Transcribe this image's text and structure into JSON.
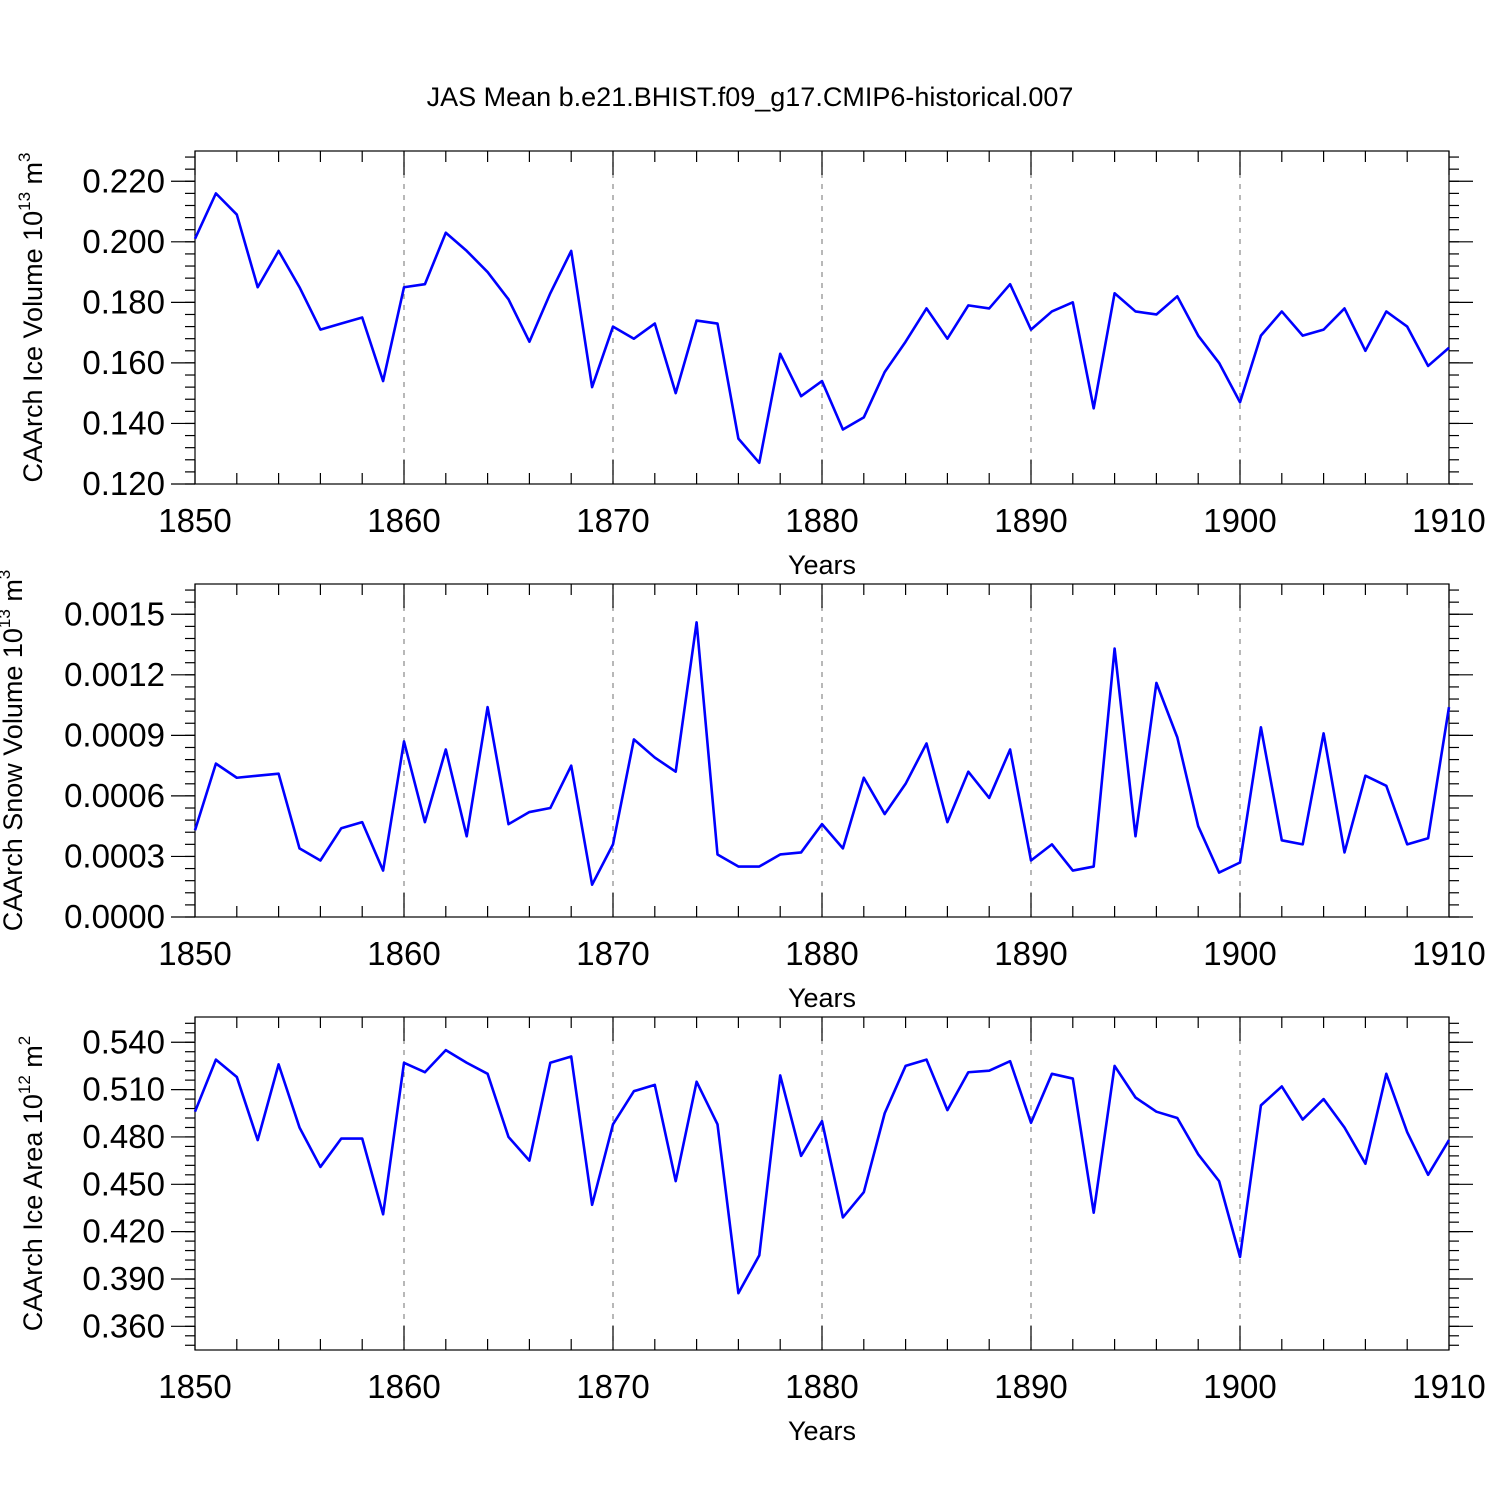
{
  "figure": {
    "title": "JAS Mean b.e21.BHIST.f09_g17.CMIP6-historical.007"
  },
  "colors": {
    "series_line": "#0000ff",
    "grid": "#888888"
  },
  "chart_data": [
    {
      "type": "line",
      "title": "",
      "xlabel": "Years",
      "ylabel": "CAArch Ice Volume 10",
      "ylabel_exp": "13",
      "ylabel_unit": " m",
      "ylabel_unit_exp": "3",
      "xlim": [
        1850,
        1910
      ],
      "ylim": [
        0.12,
        0.23
      ],
      "xticks": [
        1850,
        1860,
        1870,
        1880,
        1890,
        1900,
        1910
      ],
      "xtick_labels": [
        "1850",
        "1860",
        "1870",
        "1880",
        "1890",
        "1900",
        "1910"
      ],
      "yticks": [
        0.12,
        0.14,
        0.16,
        0.18,
        0.2,
        0.22
      ],
      "ytick_labels": [
        "0.120",
        "0.140",
        "0.160",
        "0.180",
        "0.200",
        "0.220"
      ],
      "y_minor_step": 0.004,
      "grid_x": true,
      "x": [
        1850,
        1851,
        1852,
        1853,
        1854,
        1855,
        1856,
        1857,
        1858,
        1859,
        1860,
        1861,
        1862,
        1863,
        1864,
        1865,
        1866,
        1867,
        1868,
        1869,
        1870,
        1871,
        1872,
        1873,
        1874,
        1875,
        1876,
        1877,
        1878,
        1879,
        1880,
        1881,
        1882,
        1883,
        1884,
        1885,
        1886,
        1887,
        1888,
        1889,
        1890,
        1891,
        1892,
        1893,
        1894,
        1895,
        1896,
        1897,
        1898,
        1899,
        1900,
        1901,
        1902,
        1903,
        1904,
        1905,
        1906,
        1907,
        1908,
        1909,
        1910
      ],
      "series": [
        {
          "values": [
            0.201,
            0.216,
            0.209,
            0.185,
            0.197,
            0.185,
            0.171,
            0.173,
            0.175,
            0.154,
            0.185,
            0.186,
            0.203,
            0.197,
            0.19,
            0.181,
            0.167,
            0.183,
            0.197,
            0.152,
            0.172,
            0.168,
            0.173,
            0.15,
            0.174,
            0.173,
            0.135,
            0.127,
            0.163,
            0.149,
            0.154,
            0.138,
            0.142,
            0.157,
            0.167,
            0.178,
            0.168,
            0.179,
            0.178,
            0.186,
            0.171,
            0.177,
            0.18,
            0.145,
            0.183,
            0.177,
            0.176,
            0.182,
            0.169,
            0.16,
            0.147,
            0.169,
            0.177,
            0.169,
            0.171,
            0.178,
            0.164,
            0.177,
            0.172,
            0.159,
            0.165
          ]
        }
      ]
    },
    {
      "type": "line",
      "title": "",
      "xlabel": "Years",
      "ylabel": "CAArch Snow Volume 10",
      "ylabel_exp": "13",
      "ylabel_unit": " m",
      "ylabel_unit_exp": "3",
      "xlim": [
        1850,
        1910
      ],
      "ylim": [
        0.0,
        0.00165
      ],
      "xticks": [
        1850,
        1860,
        1870,
        1880,
        1890,
        1900,
        1910
      ],
      "xtick_labels": [
        "1850",
        "1860",
        "1870",
        "1880",
        "1890",
        "1900",
        "1910"
      ],
      "yticks": [
        0.0,
        0.0003,
        0.0006,
        0.0009,
        0.0012,
        0.0015
      ],
      "ytick_labels": [
        "0.0000",
        "0.0003",
        "0.0006",
        "0.0009",
        "0.0012",
        "0.0015"
      ],
      "y_minor_step": 6e-05,
      "grid_x": true,
      "x": [
        1850,
        1851,
        1852,
        1853,
        1854,
        1855,
        1856,
        1857,
        1858,
        1859,
        1860,
        1861,
        1862,
        1863,
        1864,
        1865,
        1866,
        1867,
        1868,
        1869,
        1870,
        1871,
        1872,
        1873,
        1874,
        1875,
        1876,
        1877,
        1878,
        1879,
        1880,
        1881,
        1882,
        1883,
        1884,
        1885,
        1886,
        1887,
        1888,
        1889,
        1890,
        1891,
        1892,
        1893,
        1894,
        1895,
        1896,
        1897,
        1898,
        1899,
        1900,
        1901,
        1902,
        1903,
        1904,
        1905,
        1906,
        1907,
        1908,
        1909,
        1910
      ],
      "series": [
        {
          "values": [
            0.00043,
            0.00076,
            0.00069,
            0.0007,
            0.00071,
            0.00034,
            0.00028,
            0.00044,
            0.00047,
            0.00023,
            0.00087,
            0.00047,
            0.00083,
            0.0004,
            0.00104,
            0.00046,
            0.00052,
            0.00054,
            0.00075,
            0.00016,
            0.00036,
            0.00088,
            0.00079,
            0.00072,
            0.00146,
            0.00031,
            0.00025,
            0.00025,
            0.00031,
            0.00032,
            0.00046,
            0.00034,
            0.00069,
            0.00051,
            0.00066,
            0.00086,
            0.00047,
            0.00072,
            0.00059,
            0.00083,
            0.00028,
            0.00036,
            0.00023,
            0.00025,
            0.00133,
            0.0004,
            0.00116,
            0.00089,
            0.00045,
            0.00022,
            0.00027,
            0.00094,
            0.00038,
            0.00036,
            0.00091,
            0.00032,
            0.0007,
            0.00065,
            0.00036,
            0.00039,
            0.00104
          ]
        }
      ]
    },
    {
      "type": "line",
      "title": "",
      "xlabel": "Years",
      "ylabel": "CAArch Ice Area 10",
      "ylabel_exp": "12",
      "ylabel_unit": " m",
      "ylabel_unit_exp": "2",
      "xlim": [
        1850,
        1910
      ],
      "ylim": [
        0.345,
        0.556
      ],
      "xticks": [
        1850,
        1860,
        1870,
        1880,
        1890,
        1900,
        1910
      ],
      "xtick_labels": [
        "1850",
        "1860",
        "1870",
        "1880",
        "1890",
        "1900",
        "1910"
      ],
      "yticks": [
        0.36,
        0.39,
        0.42,
        0.45,
        0.48,
        0.51,
        0.54
      ],
      "ytick_labels": [
        "0.360",
        "0.390",
        "0.420",
        "0.450",
        "0.480",
        "0.510",
        "0.540"
      ],
      "y_minor_step": 0.006,
      "grid_x": true,
      "x": [
        1850,
        1851,
        1852,
        1853,
        1854,
        1855,
        1856,
        1857,
        1858,
        1859,
        1860,
        1861,
        1862,
        1863,
        1864,
        1865,
        1866,
        1867,
        1868,
        1869,
        1870,
        1871,
        1872,
        1873,
        1874,
        1875,
        1876,
        1877,
        1878,
        1879,
        1880,
        1881,
        1882,
        1883,
        1884,
        1885,
        1886,
        1887,
        1888,
        1889,
        1890,
        1891,
        1892,
        1893,
        1894,
        1895,
        1896,
        1897,
        1898,
        1899,
        1900,
        1901,
        1902,
        1903,
        1904,
        1905,
        1906,
        1907,
        1908,
        1909,
        1910
      ],
      "series": [
        {
          "values": [
            0.496,
            0.529,
            0.518,
            0.478,
            0.526,
            0.486,
            0.461,
            0.479,
            0.479,
            0.431,
            0.527,
            0.521,
            0.535,
            0.527,
            0.52,
            0.48,
            0.465,
            0.527,
            0.531,
            0.437,
            0.488,
            0.509,
            0.513,
            0.452,
            0.515,
            0.488,
            0.381,
            0.405,
            0.519,
            0.468,
            0.49,
            0.429,
            0.445,
            0.495,
            0.525,
            0.529,
            0.497,
            0.521,
            0.522,
            0.528,
            0.489,
            0.52,
            0.517,
            0.432,
            0.525,
            0.505,
            0.496,
            0.492,
            0.469,
            0.452,
            0.404,
            0.5,
            0.512,
            0.491,
            0.504,
            0.486,
            0.463,
            0.52,
            0.483,
            0.456,
            0.478
          ]
        }
      ]
    }
  ]
}
